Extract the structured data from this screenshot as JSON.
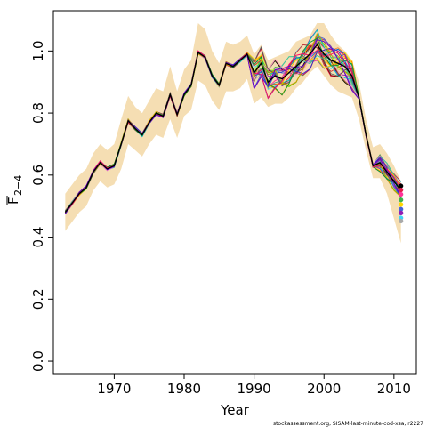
{
  "chart_data": {
    "type": "line",
    "xlabel": "Year",
    "ylabel_main": "F",
    "ylabel_sub": "2−4",
    "credit": "stockassessment.org, SISAM-last-minute-cod-xsa, r2227",
    "xlim": [
      1961.3,
      2013.2
    ],
    "ylim": [
      -0.04,
      1.13
    ],
    "x_ticks": [
      1970,
      1980,
      1990,
      2000,
      2010
    ],
    "y_ticks": [
      0.0,
      0.2,
      0.4,
      0.6,
      0.8,
      1.0
    ],
    "y_tick_labels": [
      "0.0",
      "0.2",
      "0.4",
      "0.6",
      "0.8",
      "1.0"
    ],
    "band_color": "#f5deb3",
    "years": [
      1963,
      1964,
      1965,
      1966,
      1967,
      1968,
      1969,
      1970,
      1971,
      1972,
      1973,
      1974,
      1975,
      1976,
      1977,
      1978,
      1979,
      1980,
      1981,
      1982,
      1983,
      1984,
      1985,
      1986,
      1987,
      1988,
      1989,
      1990,
      1991,
      1992,
      1993,
      1994,
      1995,
      1996,
      1997,
      1998,
      1999,
      2000,
      2001,
      2002,
      2003,
      2004,
      2005,
      2006,
      2007,
      2008,
      2009,
      2010,
      2011
    ],
    "estimate": [
      0.48,
      0.51,
      0.54,
      0.56,
      0.61,
      0.64,
      0.62,
      0.63,
      0.7,
      0.775,
      0.75,
      0.73,
      0.77,
      0.8,
      0.79,
      0.86,
      0.795,
      0.86,
      0.89,
      0.995,
      0.98,
      0.92,
      0.89,
      0.96,
      0.95,
      0.97,
      0.99,
      0.93,
      0.96,
      0.9,
      0.92,
      0.91,
      0.93,
      0.95,
      0.97,
      0.99,
      1.02,
      0.99,
      0.97,
      0.96,
      0.95,
      0.92,
      0.85,
      0.73,
      0.63,
      0.64,
      0.61,
      0.58,
      0.55
    ],
    "upper": [
      0.54,
      0.57,
      0.6,
      0.62,
      0.67,
      0.7,
      0.68,
      0.7,
      0.78,
      0.855,
      0.82,
      0.8,
      0.84,
      0.88,
      0.87,
      0.95,
      0.87,
      0.94,
      0.97,
      1.09,
      1.07,
      1.0,
      0.96,
      1.03,
      1.02,
      1.03,
      1.05,
      0.99,
      1.02,
      0.97,
      0.98,
      0.99,
      1.0,
      1.03,
      1.04,
      1.05,
      1.09,
      1.09,
      1.05,
      1.02,
      1.0,
      0.97,
      0.9,
      0.78,
      0.69,
      0.7,
      0.67,
      0.63,
      0.58
    ],
    "lower": [
      0.42,
      0.45,
      0.48,
      0.5,
      0.55,
      0.58,
      0.56,
      0.57,
      0.62,
      0.7,
      0.68,
      0.66,
      0.7,
      0.73,
      0.72,
      0.78,
      0.72,
      0.79,
      0.81,
      0.905,
      0.89,
      0.84,
      0.81,
      0.87,
      0.87,
      0.88,
      0.91,
      0.83,
      0.85,
      0.82,
      0.83,
      0.83,
      0.85,
      0.88,
      0.9,
      0.93,
      0.95,
      0.92,
      0.89,
      0.87,
      0.86,
      0.85,
      0.78,
      0.68,
      0.59,
      0.59,
      0.54,
      0.46,
      0.38
    ],
    "retro_colors": [
      "#000000",
      "#e6194b",
      "#ff3399",
      "#3cb44b",
      "#bfef45",
      "#ffd700",
      "#f58231",
      "#4363d8",
      "#911eb4",
      "#42d4f4",
      "#a9a9a9",
      "#9a6324",
      "#800000",
      "#469990",
      "#cc0066",
      "#66cc00",
      "#ff6600",
      "#0066cc",
      "#993399",
      "#00cccc",
      "#cc3333",
      "#33cc99",
      "#ff99cc",
      "#666666",
      "#ffcc00",
      "#3333cc",
      "#cc9900",
      "#009933",
      "#ff0066",
      "#6600cc"
    ],
    "dot_colors": [
      "#000000",
      "#e6194b",
      "#ff3399",
      "#3cb44b",
      "#ffd700",
      "#4363d8",
      "#911eb4",
      "#42d4f4",
      "#a9a9a9"
    ],
    "dot_values": [
      0.565,
      0.552,
      0.538,
      0.52,
      0.505,
      0.49,
      0.478,
      0.462,
      0.452
    ]
  }
}
